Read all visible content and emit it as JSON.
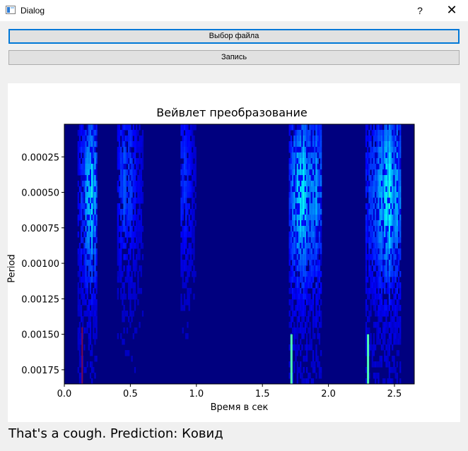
{
  "window": {
    "title": "Dialog",
    "help_label": "?",
    "close_label": "✕",
    "icon": "dialog-window-icon"
  },
  "buttons": {
    "select_file": "Выбор файла",
    "record": "Запись"
  },
  "chart_data": {
    "type": "heatmap",
    "title": "Вейвлет преобразование",
    "xlabel": "Время в сек",
    "ylabel": "Period",
    "xlim": [
      0,
      2.65
    ],
    "ylim": [
      0.00185,
      2e-05
    ],
    "xticks": [
      0.0,
      0.5,
      1.0,
      1.5,
      2.0,
      2.5
    ],
    "xtick_labels": [
      "0.0",
      "0.5",
      "1.0",
      "1.5",
      "2.0",
      "2.5"
    ],
    "yticks": [
      0.00025,
      0.0005,
      0.00075,
      0.001,
      0.00125,
      0.0015,
      0.00175
    ],
    "ytick_labels": [
      "0.00025",
      "0.00050",
      "0.00075",
      "0.00100",
      "0.00125",
      "0.00150",
      "0.00175"
    ],
    "colormap": "jet",
    "background_color": "#00007f",
    "bursts": [
      {
        "t_start": 0.1,
        "t_end": 0.25,
        "peak_t": 0.2,
        "peak_period": 0.0005,
        "intensity": 0.6
      },
      {
        "t_start": 0.4,
        "t_end": 0.6,
        "peak_t": 0.45,
        "peak_period": 0.0004,
        "intensity": 0.35
      },
      {
        "t_start": 0.88,
        "t_end": 1.0,
        "peak_t": 0.9,
        "peak_period": 0.0004,
        "intensity": 0.3
      },
      {
        "t_start": 1.7,
        "t_end": 1.95,
        "peak_t": 1.82,
        "peak_period": 0.0005,
        "intensity": 0.7
      },
      {
        "t_start": 2.28,
        "t_end": 2.55,
        "peak_t": 2.45,
        "peak_period": 0.0005,
        "intensity": 0.65
      }
    ]
  },
  "status": {
    "result_text": "That's a cough. Prediction: Ковид"
  }
}
